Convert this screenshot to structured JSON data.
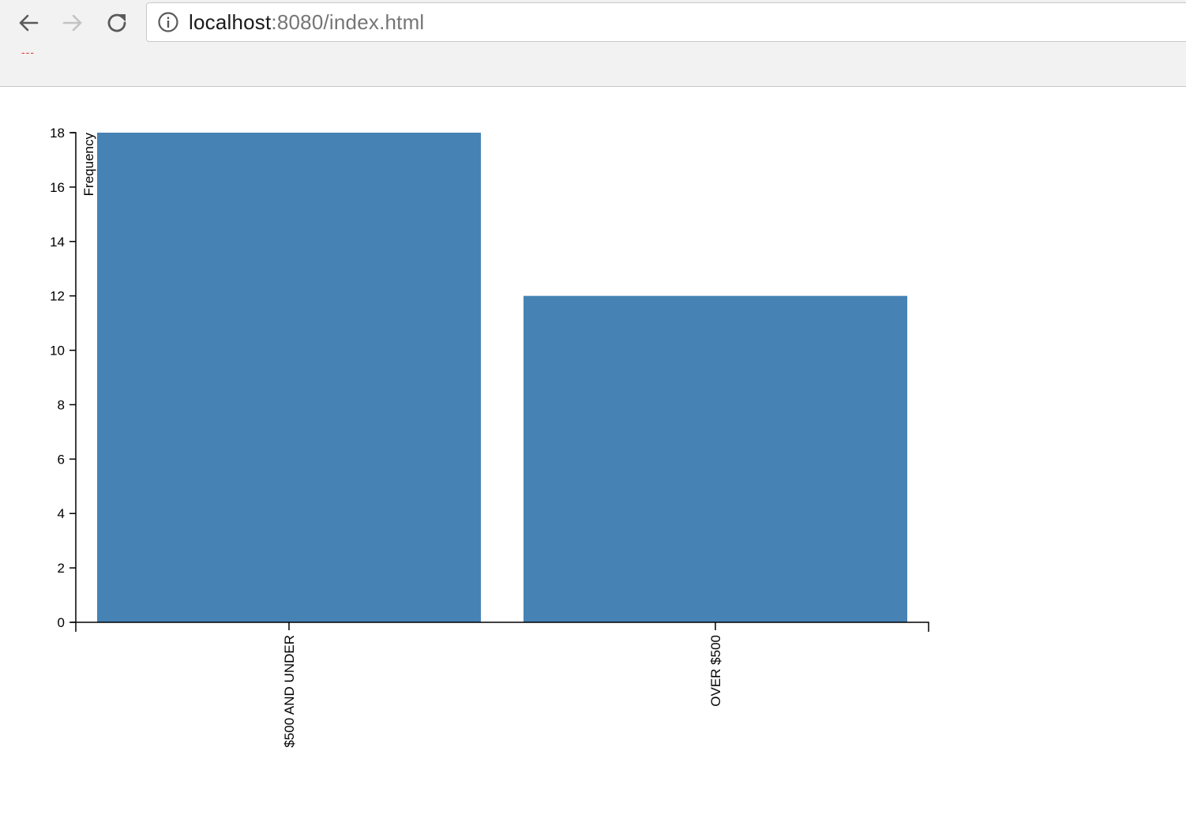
{
  "browser": {
    "url_host": "localhost",
    "url_rest": ":8080/index.html",
    "dash_mark": "---",
    "icons": {
      "back": "back-arrow-icon",
      "forward": "forward-arrow-icon",
      "reload": "reload-icon",
      "info": "info-icon"
    }
  },
  "chart_data": {
    "type": "bar",
    "categories": [
      "$500 AND UNDER",
      "OVER $500"
    ],
    "values": [
      18,
      12
    ],
    "ylabel": "Frequency",
    "xlabel": "",
    "ylim": [
      0,
      18
    ],
    "yticks": [
      0,
      2,
      4,
      6,
      8,
      10,
      12,
      14,
      16,
      18
    ],
    "grid": false,
    "bar_color": "#4682b4"
  }
}
